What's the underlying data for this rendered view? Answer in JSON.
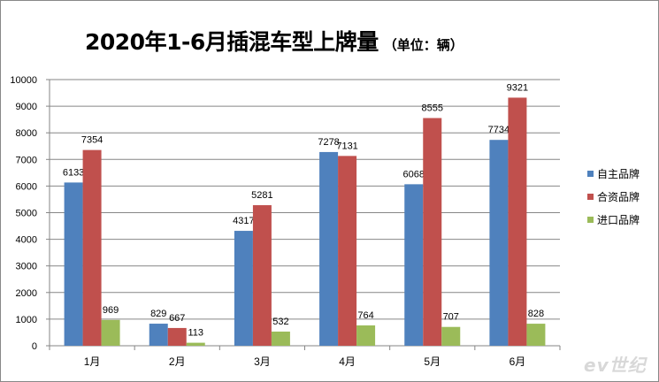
{
  "title": "2020年1-6月插混车型上牌量",
  "unit_label": "（单位：辆）",
  "watermark": "ev世纪",
  "colors": {
    "自主品牌": "#4f81bd",
    "合资品牌": "#c0504d",
    "进口品牌": "#9bbb59"
  },
  "legend": [
    {
      "label": "自主品牌",
      "color": "#4f81bd"
    },
    {
      "label": "合资品牌",
      "color": "#c0504d"
    },
    {
      "label": "进口品牌",
      "color": "#9bbb59"
    }
  ],
  "chart_data": {
    "type": "bar",
    "title": "2020年1-6月插混车型上牌量（单位：辆）",
    "xlabel": "",
    "ylabel": "",
    "categories": [
      "1月",
      "2月",
      "3月",
      "4月",
      "5月",
      "6月"
    ],
    "series": [
      {
        "name": "自主品牌",
        "values": [
          6133,
          829,
          4317,
          7278,
          6068,
          7734
        ]
      },
      {
        "name": "合资品牌",
        "values": [
          7354,
          667,
          5281,
          7131,
          8555,
          9321
        ]
      },
      {
        "name": "进口品牌",
        "values": [
          969,
          113,
          532,
          764,
          707,
          828
        ]
      }
    ],
    "ylim": [
      0,
      10000
    ],
    "yticks": [
      0,
      1000,
      2000,
      3000,
      4000,
      5000,
      6000,
      7000,
      8000,
      9000,
      10000
    ],
    "grid": true,
    "legend_position": "right",
    "data_labels": true
  }
}
